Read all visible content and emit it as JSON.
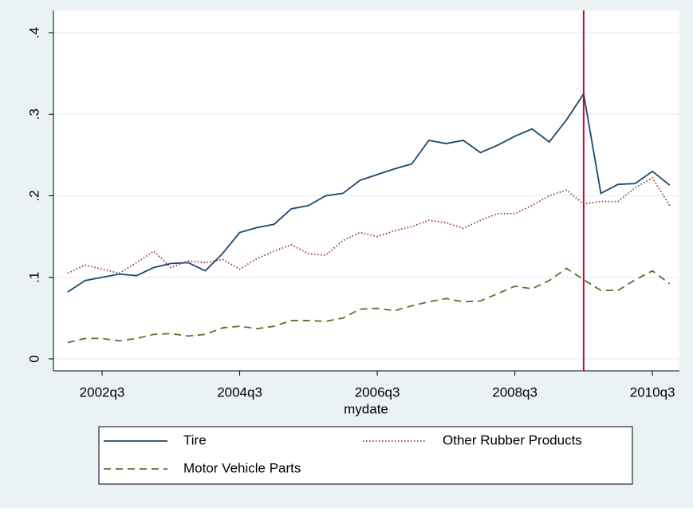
{
  "chart_data": {
    "type": "line",
    "x_label": "mydate",
    "x": [
      168,
      169,
      170,
      171,
      172,
      173,
      174,
      175,
      176,
      177,
      178,
      179,
      180,
      181,
      182,
      183,
      184,
      185,
      186,
      187,
      188,
      189,
      190,
      191,
      192,
      193,
      194,
      195,
      196,
      197,
      198,
      199,
      200,
      201,
      202,
      203
    ],
    "series": [
      {
        "name": "Tire",
        "color": "#1a476f",
        "dash": "solid",
        "values": [
          0.082,
          0.096,
          0.1,
          0.104,
          0.102,
          0.112,
          0.117,
          0.118,
          0.108,
          0.129,
          0.155,
          0.161,
          0.165,
          0.184,
          0.188,
          0.2,
          0.203,
          0.219,
          0.226,
          0.233,
          0.239,
          0.268,
          0.264,
          0.268,
          0.253,
          0.262,
          0.273,
          0.282,
          0.266,
          0.293,
          0.325,
          0.203,
          0.214,
          0.215,
          0.23,
          0.213
        ]
      },
      {
        "name": "Other Rubber Products",
        "color": "#90353b",
        "dash": "dotted",
        "values": [
          0.105,
          0.115,
          0.11,
          0.105,
          0.118,
          0.132,
          0.112,
          0.12,
          0.118,
          0.122,
          0.11,
          0.123,
          0.132,
          0.14,
          0.129,
          0.127,
          0.145,
          0.155,
          0.15,
          0.157,
          0.162,
          0.17,
          0.167,
          0.16,
          0.17,
          0.178,
          0.178,
          0.188,
          0.2,
          0.207,
          0.19,
          0.193,
          0.193,
          0.21,
          0.222,
          0.188
        ]
      },
      {
        "name": "Motor Vehicle Parts",
        "color": "#55752f",
        "dash": "dashed",
        "values": [
          0.02,
          0.025,
          0.025,
          0.022,
          0.025,
          0.03,
          0.031,
          0.028,
          0.03,
          0.038,
          0.04,
          0.037,
          0.04,
          0.047,
          0.047,
          0.046,
          0.05,
          0.061,
          0.062,
          0.059,
          0.065,
          0.07,
          0.074,
          0.07,
          0.071,
          0.08,
          0.089,
          0.086,
          0.096,
          0.111,
          0.097,
          0.084,
          0.084,
          0.097,
          0.108,
          0.092
        ]
      }
    ],
    "xlim": [
      167.17,
      203.57
    ],
    "xticks": [
      {
        "value": 170,
        "label": "2002q3"
      },
      {
        "value": 178,
        "label": "2004q3"
      },
      {
        "value": 186,
        "label": "2006q3"
      },
      {
        "value": 194,
        "label": "2008q3"
      },
      {
        "value": 202,
        "label": "2010q3"
      }
    ],
    "ylim": [
      -0.0147,
      0.4274
    ],
    "yticks": [
      0,
      {
        "value": 0.1,
        "label": ".1"
      },
      {
        "value": 0.2,
        "label": ".2"
      },
      {
        "value": 0.3,
        "label": ".3"
      },
      {
        "value": 0.4,
        "label": ".4"
      }
    ],
    "xline": {
      "value": 198,
      "color": "#c10534"
    },
    "grid": true
  }
}
